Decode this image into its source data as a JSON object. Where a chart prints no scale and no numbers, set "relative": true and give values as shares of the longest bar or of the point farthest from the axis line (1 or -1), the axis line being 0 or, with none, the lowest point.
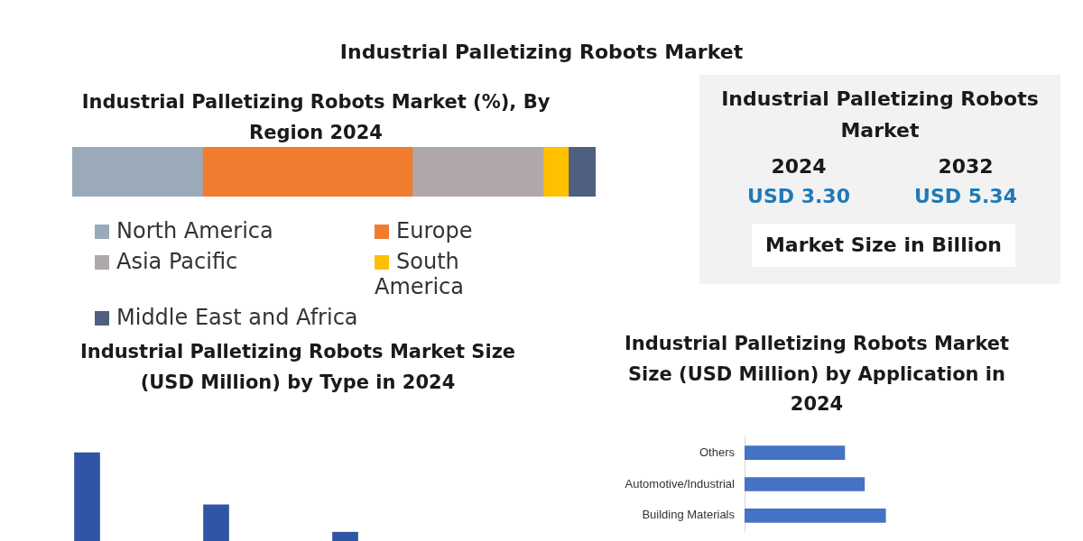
{
  "chart_data": [
    {
      "type": "other",
      "title": "Industrial Palletizing Robots Market"
    },
    {
      "type": "bar",
      "title": "Industrial Palletizing Robots Market (%), By Region 2024",
      "orientation": "horizontal",
      "stacked": true,
      "relative": true,
      "categories": [
        null
      ],
      "legend": "bottom",
      "series": [
        {
          "name": "North America",
          "color": "#9aaab8",
          "values": [
            0.249
          ]
        },
        {
          "name": "Europe",
          "color": "#f07c30",
          "values": [
            0.401
          ]
        },
        {
          "name": "Asia Pacific",
          "color": "#b0a8a8",
          "values": [
            0.25
          ]
        },
        {
          "name": "South America",
          "color": "#ffc000",
          "values": [
            0.048
          ]
        },
        {
          "name": "Middle East and Africa",
          "color": "#4f5f7f",
          "values": [
            0.052
          ]
        }
      ]
    },
    {
      "type": "other",
      "title": "Industrial Palletizing Robots Market",
      "annotations": [
        "2024",
        "USD 3.30",
        "2032",
        "USD 5.34",
        "Market Size in Billion"
      ]
    },
    {
      "type": "bar",
      "title": "Industrial Palletizing Robots Market Size (USD Million) by Type in 2024",
      "relative": true,
      "categories": [
        null,
        null,
        null
      ],
      "values": [
        1,
        0.41,
        0.1
      ],
      "color": "#2f55a4"
    },
    {
      "type": "bar",
      "title": "Industrial Palletizing Robots Market Size (USD Million)  by Application in 2024",
      "orientation": "horizontal",
      "relative": true,
      "categories": [
        "Others",
        "Automotive/Industrial",
        "Building Materials"
      ],
      "values": [
        0.71,
        0.85,
        1
      ],
      "color": "#4472c4"
    }
  ]
}
